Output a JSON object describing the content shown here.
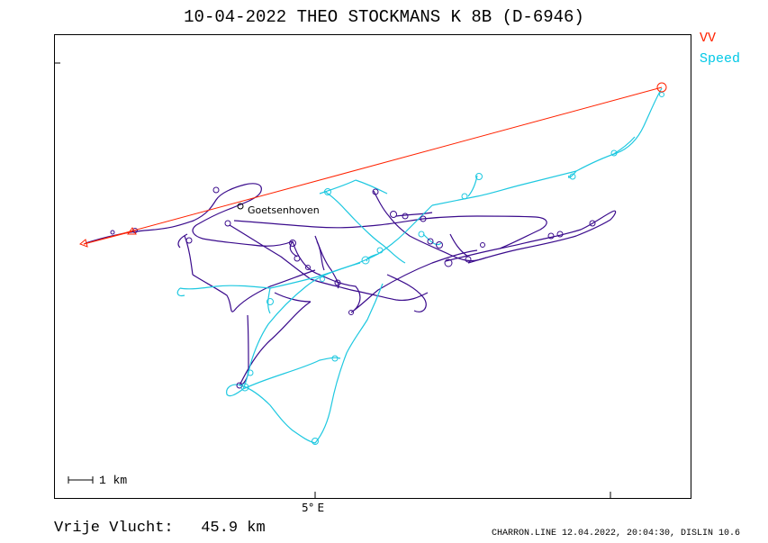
{
  "title": "10-04-2022   THEO STOCKMANS   K 8B (D-6946)",
  "legend": {
    "vv_label": "VV",
    "speed_label": "Speed",
    "vv_color": "#ff2200",
    "speed_color": "#00c8e6"
  },
  "track_colors": {
    "slow_segment": "#3a0b8c",
    "fast_segment": "#1ec8e0"
  },
  "axis": {
    "x_tick_label": "5° E"
  },
  "scale_bar": {
    "label": "1 km"
  },
  "place": {
    "name": "Goetsenhoven"
  },
  "summary": {
    "label": "Vrije Vlucht:",
    "distance": "45.9 km"
  },
  "footer": "CHARRON.LINE 12.04.2022, 20:04:30, DISLIN 10.6"
}
